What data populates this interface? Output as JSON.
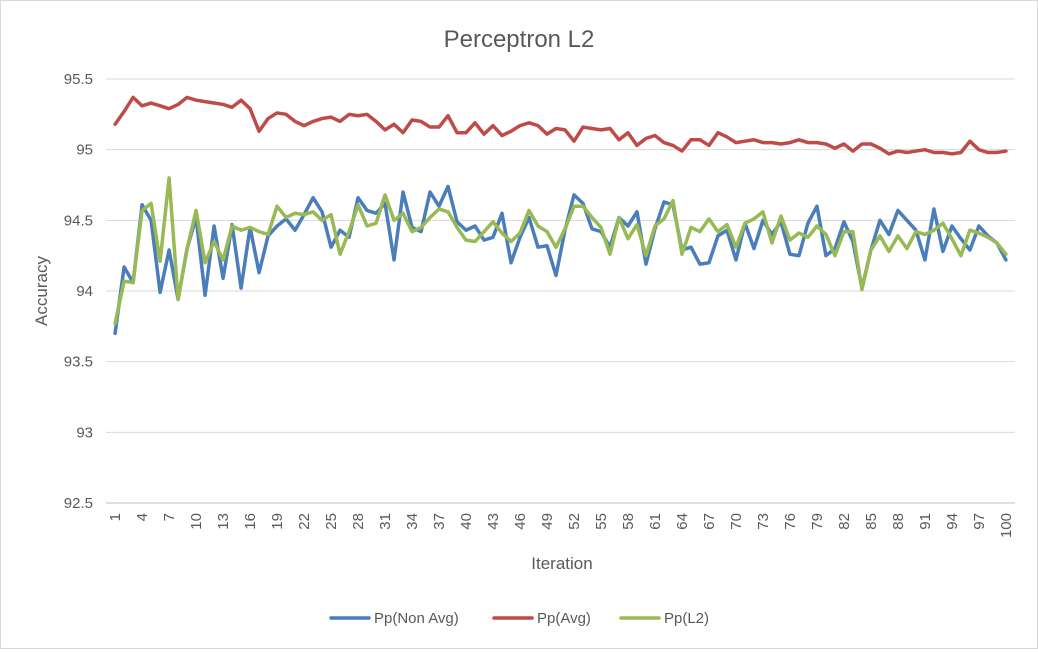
{
  "chart_data": {
    "type": "line",
    "title": "Perceptron L2",
    "xlabel": "Iteration",
    "ylabel": "Accuracy",
    "ylim": [
      92.5,
      95.5
    ],
    "ytick_labels": [
      "92.5",
      "93",
      "93.5",
      "94",
      "94.5",
      "95",
      "95.5"
    ],
    "ytick_values": [
      92.5,
      93,
      93.5,
      94,
      94.5,
      95,
      95.5
    ],
    "xtick_labels": [
      "1",
      "4",
      "7",
      "10",
      "13",
      "16",
      "19",
      "22",
      "25",
      "28",
      "31",
      "34",
      "37",
      "40",
      "43",
      "46",
      "49",
      "52",
      "55",
      "58",
      "61",
      "64",
      "67",
      "70",
      "73",
      "76",
      "79",
      "82",
      "85",
      "88",
      "91",
      "94",
      "97",
      "100"
    ],
    "x_start": 1,
    "x_end": 100,
    "grid": "horizontal",
    "legend_position": "bottom",
    "series": [
      {
        "name": "Pp(Non Avg)",
        "color": "#4a7ebb",
        "values": [
          93.7,
          94.17,
          94.06,
          94.61,
          94.5,
          93.99,
          94.29,
          93.94,
          94.3,
          94.52,
          93.97,
          94.46,
          94.09,
          94.47,
          94.02,
          94.45,
          94.13,
          94.39,
          94.46,
          94.51,
          94.43,
          94.54,
          94.66,
          94.56,
          94.31,
          94.43,
          94.38,
          94.66,
          94.57,
          94.55,
          94.62,
          94.22,
          94.7,
          94.45,
          94.42,
          94.7,
          94.6,
          94.74,
          94.49,
          94.43,
          94.46,
          94.36,
          94.38,
          94.55,
          94.2,
          94.38,
          94.52,
          94.31,
          94.32,
          94.11,
          94.43,
          94.68,
          94.62,
          94.44,
          94.42,
          94.31,
          94.52,
          94.46,
          94.56,
          94.19,
          94.44,
          94.63,
          94.61,
          94.29,
          94.31,
          94.19,
          94.2,
          94.39,
          94.43,
          94.22,
          94.48,
          94.3,
          94.5,
          94.4,
          94.49,
          94.26,
          94.25,
          94.48,
          94.6,
          94.25,
          94.3,
          94.49,
          94.35,
          94.02,
          94.29,
          94.5,
          94.4,
          94.57,
          94.5,
          94.43,
          94.22,
          94.58,
          94.28,
          94.46,
          94.37,
          94.29,
          94.46,
          94.39,
          94.34,
          94.22
        ]
      },
      {
        "name": "Pp(Avg)",
        "color": "#be4b48",
        "values": [
          95.18,
          95.27,
          95.37,
          95.31,
          95.33,
          95.31,
          95.29,
          95.32,
          95.37,
          95.35,
          95.34,
          95.33,
          95.32,
          95.3,
          95.35,
          95.29,
          95.13,
          95.22,
          95.26,
          95.25,
          95.2,
          95.17,
          95.2,
          95.22,
          95.23,
          95.2,
          95.25,
          95.24,
          95.25,
          95.2,
          95.14,
          95.18,
          95.12,
          95.21,
          95.2,
          95.16,
          95.16,
          95.24,
          95.12,
          95.12,
          95.19,
          95.11,
          95.17,
          95.1,
          95.13,
          95.17,
          95.19,
          95.17,
          95.11,
          95.15,
          95.14,
          95.06,
          95.16,
          95.15,
          95.14,
          95.15,
          95.07,
          95.12,
          95.03,
          95.08,
          95.1,
          95.05,
          95.03,
          94.99,
          95.07,
          95.07,
          95.03,
          95.12,
          95.09,
          95.05,
          95.06,
          95.07,
          95.05,
          95.05,
          95.04,
          95.05,
          95.07,
          95.05,
          95.05,
          95.04,
          95.01,
          95.04,
          94.99,
          95.04,
          95.04,
          95.01,
          94.97,
          94.99,
          94.98,
          94.99,
          95.0,
          94.98,
          94.98,
          94.97,
          94.98,
          95.06,
          95.0,
          94.98,
          94.98,
          94.99
        ]
      },
      {
        "name": "Pp(L2)",
        "color": "#98b954",
        "values": [
          93.77,
          94.07,
          94.06,
          94.57,
          94.62,
          94.21,
          94.8,
          93.94,
          94.3,
          94.57,
          94.2,
          94.35,
          94.22,
          94.46,
          94.43,
          94.45,
          94.42,
          94.4,
          94.6,
          94.52,
          94.55,
          94.54,
          94.56,
          94.5,
          94.54,
          94.26,
          94.42,
          94.61,
          94.46,
          94.48,
          94.68,
          94.5,
          94.55,
          94.42,
          94.45,
          94.52,
          94.58,
          94.56,
          94.45,
          94.36,
          94.35,
          94.42,
          94.49,
          94.41,
          94.35,
          94.41,
          94.57,
          94.46,
          94.42,
          94.31,
          94.44,
          94.6,
          94.6,
          94.52,
          94.45,
          94.26,
          94.52,
          94.37,
          94.47,
          94.25,
          94.46,
          94.51,
          94.64,
          94.26,
          94.45,
          94.42,
          94.51,
          94.42,
          94.47,
          94.31,
          94.48,
          94.51,
          94.56,
          94.34,
          94.53,
          94.36,
          94.41,
          94.38,
          94.46,
          94.4,
          94.25,
          94.42,
          94.42,
          94.01,
          94.29,
          94.39,
          94.28,
          94.39,
          94.3,
          94.42,
          94.4,
          94.43,
          94.48,
          94.37,
          94.25,
          94.43,
          94.41,
          94.38,
          94.34,
          94.26
        ]
      }
    ]
  }
}
